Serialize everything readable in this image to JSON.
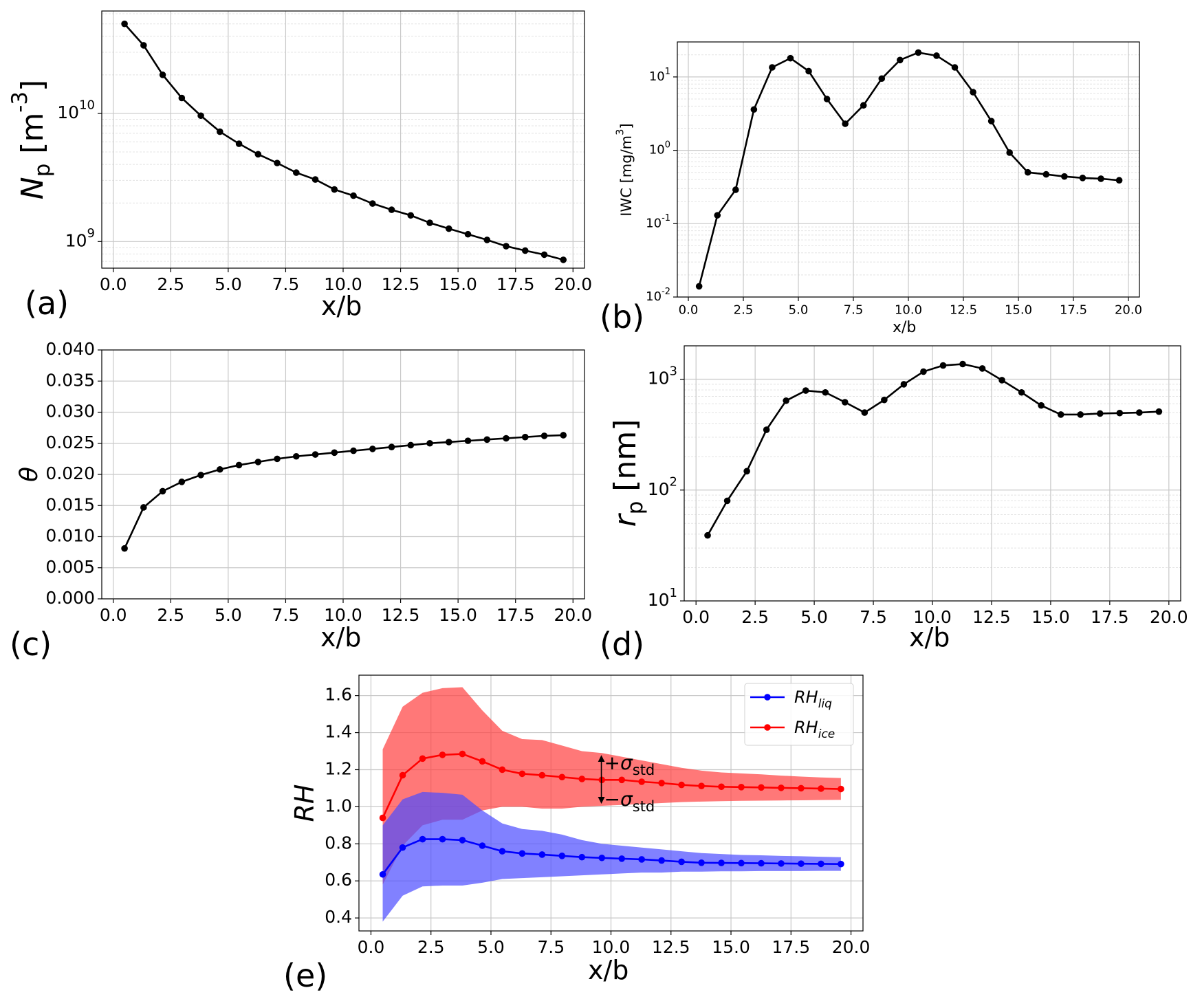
{
  "panels": {
    "a": {
      "tag": "(a)",
      "xlabel": "x/b",
      "ylabel": "N_p [m^{-3}]"
    },
    "b": {
      "tag": "(b)",
      "xlabel": "x/b",
      "ylabel": "IWC [mg/m^3]"
    },
    "c": {
      "tag": "(c)",
      "xlabel": "x/b",
      "ylabel": "θ"
    },
    "d": {
      "tag": "(d)",
      "xlabel": "x/b",
      "ylabel": "r_p [nm]"
    },
    "e": {
      "tag": "(e)",
      "xlabel": "x/b",
      "ylabel": "RH"
    }
  },
  "chart_data": [
    {
      "id": "a",
      "type": "line",
      "xlabel": "x/b",
      "ylabel": "N_p [m^{-3}]",
      "yscale": "log",
      "xlim": [
        -0.5,
        20.5
      ],
      "ylim": [
        620000000.0,
        63000000000.0
      ],
      "xticks": [
        "0.0",
        "2.5",
        "5.0",
        "7.5",
        "10.0",
        "12.5",
        "15.0",
        "17.5",
        "20.0"
      ],
      "yticks": [
        {
          "value": 1000000000.0,
          "label": "10^9"
        },
        {
          "value": 10000000000.0,
          "label": "10^10"
        }
      ],
      "grid": true,
      "color": "#000000",
      "x": [
        0.49,
        1.32,
        2.15,
        2.98,
        3.81,
        4.64,
        5.47,
        6.3,
        7.13,
        7.96,
        8.79,
        9.62,
        10.45,
        11.28,
        12.11,
        12.94,
        13.77,
        14.6,
        15.43,
        16.26,
        17.09,
        17.92,
        18.75,
        19.58
      ],
      "y": [
        50000000000.0,
        34000000000.0,
        20000000000.0,
        13200000000.0,
        9600000000.0,
        7200000000.0,
        5800000000.0,
        4800000000.0,
        4100000000.0,
        3450000000.0,
        3050000000.0,
        2550000000.0,
        2280000000.0,
        1980000000.0,
        1770000000.0,
        1600000000.0,
        1400000000.0,
        1260000000.0,
        1140000000.0,
        1030000000.0,
        920000000.0,
        850000000.0,
        790000000.0,
        720000000.0
      ]
    },
    {
      "id": "b",
      "type": "line",
      "xlabel": "x/b",
      "ylabel": "IWC [mg/m^3]",
      "yscale": "log",
      "xlim": [
        -0.5,
        20.5
      ],
      "ylim": [
        0.01,
        30
      ],
      "xticks": [
        "0.0",
        "2.5",
        "5.0",
        "7.5",
        "10.0",
        "12.5",
        "15.0",
        "17.5",
        "20.0"
      ],
      "yticks": [
        {
          "value": 0.01,
          "label": "10^-2"
        },
        {
          "value": 0.1,
          "label": "10^-1"
        },
        {
          "value": 1,
          "label": "10^0"
        },
        {
          "value": 10,
          "label": "10^1"
        }
      ],
      "grid": true,
      "color": "#000000",
      "x": [
        0.49,
        1.32,
        2.15,
        2.98,
        3.81,
        4.64,
        5.47,
        6.3,
        7.13,
        7.96,
        8.79,
        9.62,
        10.45,
        11.28,
        12.11,
        12.94,
        13.77,
        14.6,
        15.43,
        16.26,
        17.09,
        17.92,
        18.75,
        19.58
      ],
      "y": [
        0.014,
        0.13,
        0.29,
        3.6,
        13.5,
        18.0,
        12.0,
        5.0,
        2.3,
        4.1,
        9.5,
        17.0,
        21.5,
        19.5,
        13.5,
        6.2,
        2.5,
        0.93,
        0.5,
        0.47,
        0.44,
        0.42,
        0.41,
        0.39
      ]
    },
    {
      "id": "c",
      "type": "line",
      "xlabel": "x/b",
      "ylabel": "θ",
      "xlim": [
        -0.5,
        20.5
      ],
      "ylim": [
        0.0,
        0.04
      ],
      "xticks": [
        "0.0",
        "2.5",
        "5.0",
        "7.5",
        "10.0",
        "12.5",
        "15.0",
        "17.5",
        "20.0"
      ],
      "yticks": [
        "0.000",
        "0.005",
        "0.010",
        "0.015",
        "0.020",
        "0.025",
        "0.030",
        "0.035",
        "0.040"
      ],
      "grid": true,
      "color": "#000000",
      "x": [
        0.49,
        1.32,
        2.15,
        2.98,
        3.81,
        4.64,
        5.47,
        6.3,
        7.13,
        7.96,
        8.79,
        9.62,
        10.45,
        11.28,
        12.11,
        12.94,
        13.77,
        14.6,
        15.43,
        16.26,
        17.09,
        17.92,
        18.75,
        19.58
      ],
      "y": [
        0.0081,
        0.0147,
        0.0173,
        0.0188,
        0.0199,
        0.0208,
        0.0215,
        0.022,
        0.0225,
        0.0229,
        0.0232,
        0.0235,
        0.0238,
        0.0241,
        0.0244,
        0.0247,
        0.025,
        0.0252,
        0.0254,
        0.0256,
        0.0258,
        0.026,
        0.0262,
        0.0263
      ]
    },
    {
      "id": "d",
      "type": "line",
      "xlabel": "x/b",
      "ylabel": "r_p [nm]",
      "yscale": "log",
      "xlim": [
        -0.5,
        20.5
      ],
      "ylim": [
        10,
        2000
      ],
      "xticks": [
        "0.0",
        "2.5",
        "5.0",
        "7.5",
        "10.0",
        "12.5",
        "15.0",
        "17.5",
        "20.0"
      ],
      "yticks": [
        {
          "value": 10,
          "label": "10^1"
        },
        {
          "value": 100,
          "label": "10^2"
        },
        {
          "value": 1000,
          "label": "10^3"
        }
      ],
      "grid": true,
      "color": "#000000",
      "x": [
        0.49,
        1.32,
        2.15,
        2.98,
        3.81,
        4.64,
        5.47,
        6.3,
        7.13,
        7.96,
        8.79,
        9.62,
        10.45,
        11.28,
        12.11,
        12.94,
        13.77,
        14.6,
        15.43,
        16.26,
        17.09,
        17.92,
        18.75,
        19.58
      ],
      "y": [
        39,
        80,
        148,
        350,
        640,
        790,
        760,
        620,
        500,
        650,
        900,
        1170,
        1330,
        1370,
        1250,
        980,
        760,
        580,
        480,
        480,
        490,
        495,
        500,
        510
      ]
    },
    {
      "id": "e",
      "type": "line",
      "xlabel": "x/b",
      "ylabel": "RH",
      "xlim": [
        -0.5,
        20.5
      ],
      "ylim": [
        0.33,
        1.71
      ],
      "xticks": [
        "0.0",
        "2.5",
        "5.0",
        "7.5",
        "10.0",
        "12.5",
        "15.0",
        "17.5",
        "20.0"
      ],
      "yticks": [
        "0.4",
        "0.6",
        "0.8",
        "1.0",
        "1.2",
        "1.4",
        "1.6"
      ],
      "grid": true,
      "legend": "top-right",
      "x": [
        0.49,
        1.32,
        2.15,
        2.98,
        3.81,
        4.64,
        5.47,
        6.3,
        7.13,
        7.96,
        8.79,
        9.62,
        10.45,
        11.28,
        12.11,
        12.94,
        13.77,
        14.6,
        15.43,
        16.26,
        17.09,
        17.92,
        18.75,
        19.58
      ],
      "series": [
        {
          "name": "RH_liq",
          "color": "#0000ff",
          "band_color": "#4b4bff",
          "values": [
            0.635,
            0.78,
            0.825,
            0.825,
            0.82,
            0.79,
            0.76,
            0.748,
            0.742,
            0.735,
            0.728,
            0.724,
            0.72,
            0.716,
            0.71,
            0.703,
            0.698,
            0.697,
            0.696,
            0.695,
            0.694,
            0.693,
            0.692,
            0.691
          ],
          "upper": [
            0.9,
            1.04,
            1.08,
            1.075,
            1.065,
            0.98,
            0.91,
            0.88,
            0.87,
            0.85,
            0.82,
            0.8,
            0.79,
            0.78,
            0.77,
            0.76,
            0.75,
            0.745,
            0.74,
            0.738,
            0.735,
            0.733,
            0.73,
            0.728
          ],
          "lower": [
            0.38,
            0.52,
            0.57,
            0.575,
            0.575,
            0.59,
            0.61,
            0.615,
            0.62,
            0.625,
            0.63,
            0.635,
            0.64,
            0.645,
            0.645,
            0.65,
            0.65,
            0.652,
            0.652,
            0.653,
            0.653,
            0.653,
            0.654,
            0.654
          ]
        },
        {
          "name": "RH_ice",
          "color": "#ff0000",
          "band_color": "#ff3f3f",
          "values": [
            0.94,
            1.17,
            1.26,
            1.28,
            1.285,
            1.245,
            1.2,
            1.178,
            1.17,
            1.16,
            1.15,
            1.145,
            1.145,
            1.135,
            1.128,
            1.118,
            1.112,
            1.108,
            1.106,
            1.104,
            1.102,
            1.1,
            1.098,
            1.096
          ],
          "upper": [
            1.31,
            1.54,
            1.615,
            1.64,
            1.645,
            1.52,
            1.41,
            1.365,
            1.36,
            1.33,
            1.3,
            1.29,
            1.27,
            1.25,
            1.23,
            1.21,
            1.195,
            1.185,
            1.18,
            1.175,
            1.168,
            1.163,
            1.158,
            1.155
          ],
          "lower": [
            0.58,
            0.79,
            0.9,
            0.93,
            0.93,
            0.98,
            1.0,
            1.0,
            0.99,
            0.99,
            1.0,
            1.005,
            1.01,
            1.015,
            1.02,
            1.025,
            1.028,
            1.03,
            1.032,
            1.033,
            1.034,
            1.035,
            1.036,
            1.037
          ]
        }
      ],
      "annotation": {
        "plus": "+σ_std",
        "minus": "−σ_std",
        "at_x": 9.6
      }
    }
  ]
}
